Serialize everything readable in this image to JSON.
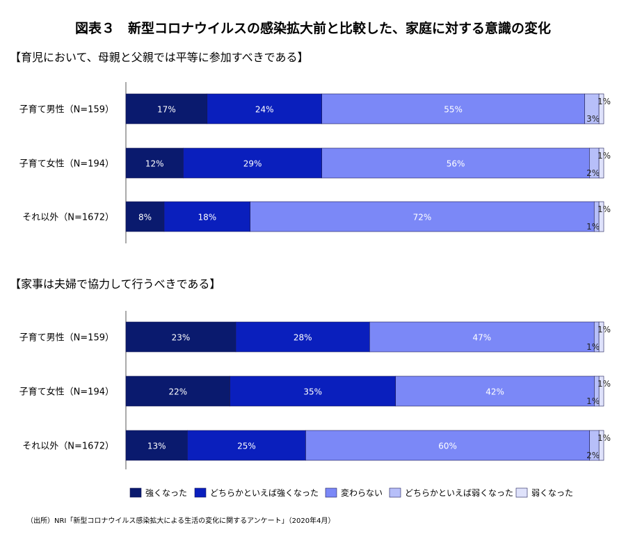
{
  "title": "図表３　新型コロナウイルスの感染拡大前と比較した、家庭に対する意識の変化",
  "source": "（出所）NRI「新型コロナウイルス感染拡大による生活の変化に関するアンケート」（2020年4月）",
  "colors": [
    "#0a1a6e",
    "#0a1fbd",
    "#7b88f7",
    "#b7bff9",
    "#dfe2fb"
  ],
  "legend": [
    "強くなった",
    "どちらかといえば強くなった",
    "変わらない",
    "どちらかといえば弱くなった",
    "弱くなった"
  ],
  "chart_data": [
    {
      "type": "bar",
      "stacked": true,
      "orientation": "horizontal",
      "title": "【育児において、母親と父親では平等に参加すべきである】",
      "categories": [
        "子育て男性（N=159）",
        "子育て女性（N=194）",
        "それ以外（N=1672）"
      ],
      "xlim": [
        0,
        100
      ],
      "series": [
        {
          "name": "強くなった",
          "values": [
            17,
            12,
            8
          ]
        },
        {
          "name": "どちらかといえば強くなった",
          "values": [
            24,
            29,
            18
          ]
        },
        {
          "name": "変わらない",
          "values": [
            55,
            56,
            72
          ]
        },
        {
          "name": "どちらかといえば弱くなった",
          "values": [
            3,
            2,
            1
          ]
        },
        {
          "name": "弱くなった",
          "values": [
            1,
            1,
            1
          ]
        }
      ]
    },
    {
      "type": "bar",
      "stacked": true,
      "orientation": "horizontal",
      "title": "【家事は夫婦で協力して行うべきである】",
      "categories": [
        "子育て男性（N=159）",
        "子育て女性（N=194）",
        "それ以外（N=1672）"
      ],
      "xlim": [
        0,
        100
      ],
      "series": [
        {
          "name": "強くなった",
          "values": [
            23,
            22,
            13
          ]
        },
        {
          "name": "どちらかといえば強くなった",
          "values": [
            28,
            35,
            25
          ]
        },
        {
          "name": "変わらない",
          "values": [
            47,
            42,
            60
          ]
        },
        {
          "name": "どちらかといえば弱くなった",
          "values": [
            1,
            1,
            2
          ]
        },
        {
          "name": "弱くなった",
          "values": [
            1,
            1,
            1
          ]
        }
      ]
    }
  ]
}
